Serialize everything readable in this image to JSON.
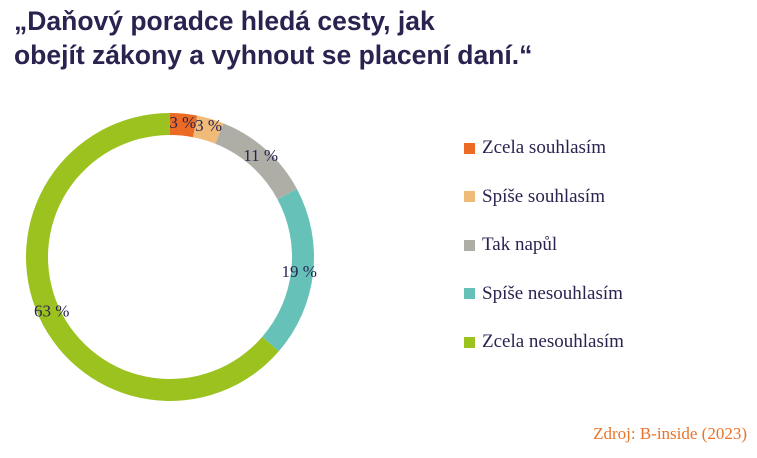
{
  "title": {
    "line1": "„Daňový poradce hledá cesty, jak",
    "line2": "obejít zákony a vyhnout se placení daní.“"
  },
  "chart_data": {
    "type": "pie",
    "variant": "donut",
    "title": "„Daňový poradce hledá cesty, jak obejít zákony a vyhnout se placení daní.“",
    "categories": [
      "Zcela souhlasím",
      "Spíše souhlasím",
      "Tak napůl",
      "Spíše nesouhlasím",
      "Zcela nesouhlasím"
    ],
    "values": [
      3,
      3,
      11,
      19,
      63
    ],
    "value_labels": [
      "3 %",
      "3 %",
      "11 %",
      "19 %",
      "63 %"
    ],
    "colors": [
      "#ec6b24",
      "#f0bb78",
      "#aeaea7",
      "#66c2b8",
      "#9bc21f"
    ],
    "start": "top",
    "direction": "clockwise",
    "legend_position": "right"
  },
  "source": "Zdroj: B-inside (2023)"
}
